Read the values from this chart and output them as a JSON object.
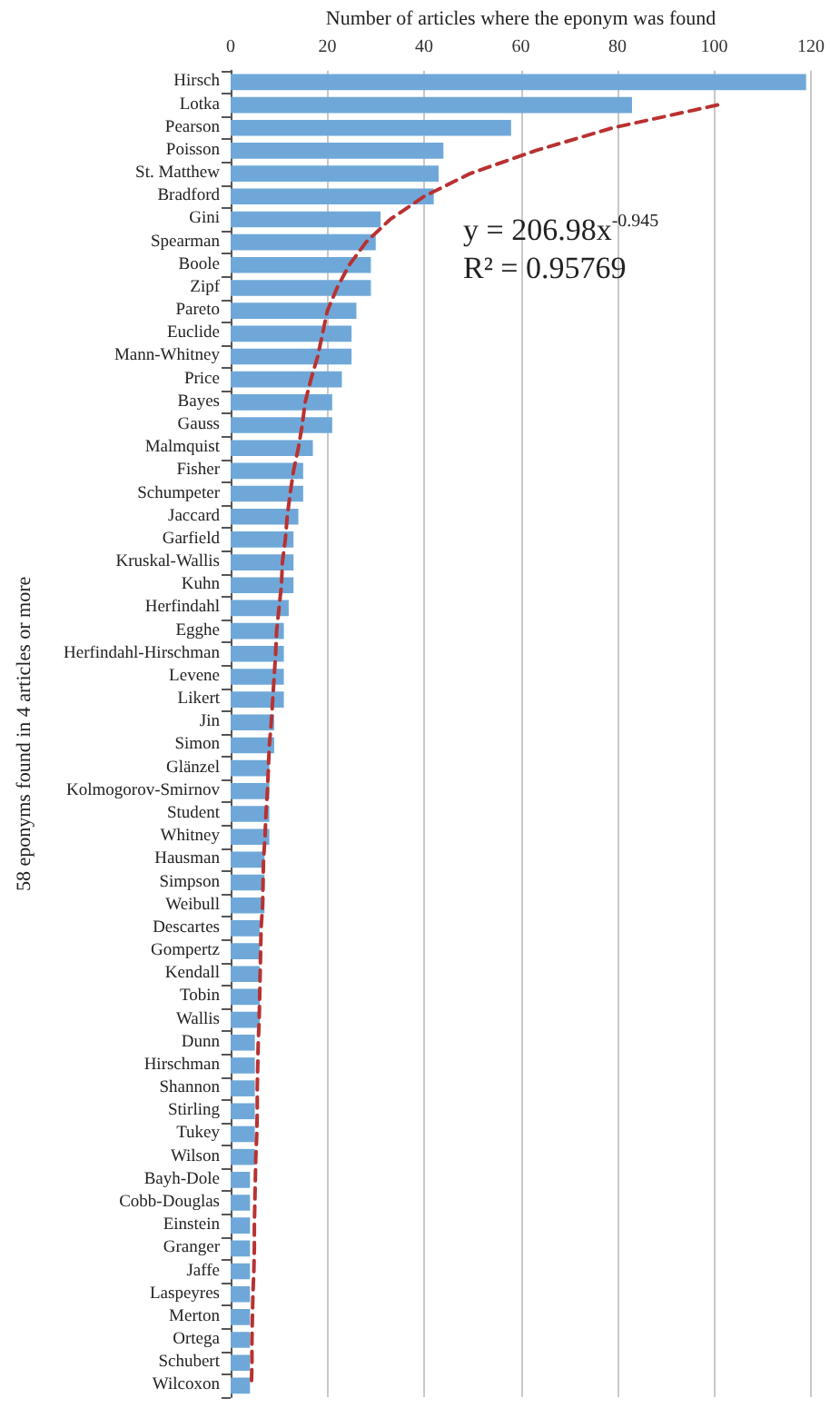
{
  "chart_data": {
    "type": "bar",
    "orientation": "horizontal",
    "xlabel": "Number of articles where the eponym was found",
    "ylabel": "58 eponyms found in 4 articles or more",
    "categories": [
      "Hirsch",
      "Lotka",
      "Pearson",
      "Poisson",
      "St. Matthew",
      "Bradford",
      "Gini",
      "Spearman",
      "Boole",
      "Zipf",
      "Pareto",
      "Euclide",
      "Mann-Whitney",
      "Price",
      "Bayes",
      "Gauss",
      "Malmquist",
      "Fisher",
      "Schumpeter",
      "Jaccard",
      "Garfield",
      "Kruskal-Wallis",
      "Kuhn",
      "Herfindahl",
      "Egghe",
      "Herfindahl-Hirschman",
      "Levene",
      "Likert",
      "Jin",
      "Simon",
      "Glänzel",
      "Kolmogorov-Smirnov",
      "Student",
      "Whitney",
      "Hausman",
      "Simpson",
      "Weibull",
      "Descartes",
      "Gompertz",
      "Kendall",
      "Tobin",
      "Wallis",
      "Dunn",
      "Hirschman",
      "Shannon",
      "Stirling",
      "Tukey",
      "Wilson",
      "Bayh-Dole",
      "Cobb-Douglas",
      "Einstein",
      "Granger",
      "Jaffe",
      "Laspeyres",
      "Merton",
      "Ortega",
      "Schubert",
      "Wilcoxon"
    ],
    "series": [
      {
        "color": "#6fa8d8",
        "values": [
          119,
          83,
          58,
          44,
          43,
          42,
          31,
          30,
          29,
          29,
          26,
          25,
          25,
          23,
          21,
          21,
          17,
          15,
          15,
          14,
          13,
          13,
          13,
          12,
          11,
          11,
          11,
          11,
          9,
          9,
          8,
          8,
          8,
          8,
          7,
          7,
          7,
          6,
          6,
          6,
          6,
          6,
          5,
          5,
          5,
          5,
          5,
          5,
          4,
          4,
          4,
          4,
          4,
          4,
          4,
          4,
          4,
          4
        ]
      },
      {
        "type": "line",
        "color": "#b83232",
        "line_style": "dashed",
        "marker": "none",
        "values": [
          null,
          100.7,
          79,
          63,
          49.5,
          40,
          33,
          28,
          24.5,
          22,
          20,
          19,
          18,
          16.6,
          15.4,
          14.8,
          14,
          13,
          12.3,
          11.7,
          11.3,
          10.7,
          10.5,
          10,
          9.5,
          9.3,
          9,
          8.7,
          8.4,
          8,
          7.8,
          7.6,
          7.3,
          7.1,
          6.8,
          6.7,
          6.6,
          6.3,
          6.2,
          6.1,
          6,
          5.9,
          5.7,
          5.6,
          5.5,
          5.5,
          5.4,
          5.2,
          5.1,
          5,
          4.9,
          4.9,
          4.8,
          4.6,
          4.5,
          4.4,
          4.4,
          4.3
        ]
      }
    ],
    "xlim": [
      0,
      120
    ],
    "xticks": [
      0,
      20,
      40,
      60,
      80,
      100,
      120
    ],
    "grid": "x",
    "annotations": [
      "y = 206.98x$^{-0.945}$",
      "R² = 0.95769"
    ]
  }
}
